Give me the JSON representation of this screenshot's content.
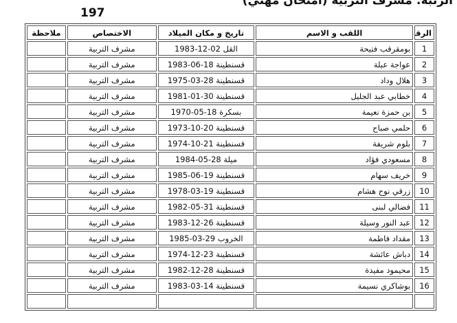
{
  "header": {
    "title": "الرتبة: مشرف التربية (امتحان مهني)",
    "number": "197"
  },
  "table": {
    "columns": [
      "الرقم",
      "اللقب و الاسم",
      "تاريخ و مكان الميلاد",
      "الاختصاص",
      "ملاحظة"
    ],
    "rows": [
      {
        "n": "1",
        "name": "بومقرقب فتيحة",
        "birth": "القل 02-12-1983",
        "spec": "مشرف التربية",
        "note": ""
      },
      {
        "n": "2",
        "name": "عواجة عبلة",
        "birth": "قسنطينة 18-06-1983",
        "spec": "مشرف التربية",
        "note": ""
      },
      {
        "n": "3",
        "name": "هلال وداد",
        "birth": "قسنطينة 28-03-1975",
        "spec": "مشرف التربية",
        "note": ""
      },
      {
        "n": "4",
        "name": "خطابي عبد الجليل",
        "birth": "قسنطينة 30-01-1981",
        "spec": "مشرف التربية",
        "note": ""
      },
      {
        "n": "5",
        "name": "بن حمزة نعيمة",
        "birth": "بسكرة 18-05-1970",
        "spec": "مشرف التربية",
        "note": ""
      },
      {
        "n": "6",
        "name": "حلمي صباح",
        "birth": "قسنطينة 20-10-1973",
        "spec": "مشرف التربية",
        "note": ""
      },
      {
        "n": "7",
        "name": "بلوم شريفة",
        "birth": "قسنطينة 21-10-1974",
        "spec": "مشرف التربية",
        "note": ""
      },
      {
        "n": "8",
        "name": "مسعودي فؤاد",
        "birth": "ميلة 28-05-1984",
        "spec": "مشرف التربية",
        "note": ""
      },
      {
        "n": "9",
        "name": "خريف سهام",
        "birth": "قسنطينة 19-06-1985",
        "spec": "مشرف التربية",
        "note": ""
      },
      {
        "n": "10",
        "name": "زرقي نوح هشام",
        "birth": "قسنطينة 19-03-1978",
        "spec": "مشرف التربية",
        "note": ""
      },
      {
        "n": "11",
        "name": "فضالي لبنى",
        "birth": "قسنطينة 31-05-1982",
        "spec": "مشرف التربية",
        "note": ""
      },
      {
        "n": "12",
        "name": "عبد النور وسيلة",
        "birth": "قسنطينة 26-12-1983",
        "spec": "مشرف التربية",
        "note": ""
      },
      {
        "n": "13",
        "name": "مقداد فاطمة",
        "birth": "الخروب 29-03-1985",
        "spec": "مشرف التربية",
        "note": ""
      },
      {
        "n": "14",
        "name": "دباش عائشة",
        "birth": "قسنطينة 23-12-1974",
        "spec": "مشرف التربية",
        "note": ""
      },
      {
        "n": "15",
        "name": "محيمود مفيدة",
        "birth": "قسنطينة 28-12-1982",
        "spec": "مشرف التربية",
        "note": ""
      },
      {
        "n": "16",
        "name": "بوشاكري نسيمة",
        "birth": "قسنطينة 14-03-1983",
        "spec": "مشرف التربية",
        "note": ""
      }
    ]
  }
}
